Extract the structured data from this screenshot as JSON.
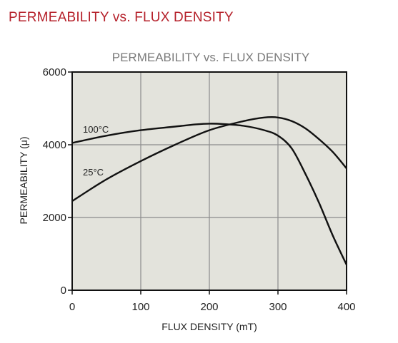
{
  "heading": "PERMEABILITY vs. FLUX DENSITY",
  "colors": {
    "heading": "#b5202a",
    "plot_background": "#e3e3dc",
    "grid": "#8c8c8c",
    "curve": "#111111"
  },
  "chart_data": {
    "type": "line",
    "title": "PERMEABILITY vs. FLUX DENSITY",
    "xlabel": "FLUX DENSITY (mT)",
    "ylabel": "PERMEABILITY (μ)",
    "xlim": [
      0,
      400
    ],
    "ylim": [
      0,
      6000
    ],
    "xticks": [
      0,
      100,
      200,
      300,
      400
    ],
    "yticks": [
      0,
      2000,
      4000,
      6000
    ],
    "grid": true,
    "series": [
      {
        "name": "100°C",
        "x": [
          0,
          50,
          100,
          150,
          180,
          200,
          220,
          250,
          280,
          300,
          320,
          340,
          360,
          380,
          400
        ],
        "y": [
          4050,
          4250,
          4400,
          4500,
          4560,
          4580,
          4570,
          4520,
          4400,
          4250,
          3900,
          3200,
          2400,
          1500,
          700
        ]
      },
      {
        "name": "25°C",
        "x": [
          0,
          50,
          100,
          150,
          200,
          250,
          280,
          300,
          320,
          340,
          360,
          380,
          400
        ],
        "y": [
          2450,
          3050,
          3550,
          4000,
          4400,
          4650,
          4750,
          4750,
          4650,
          4450,
          4150,
          3800,
          3350
        ]
      }
    ]
  }
}
